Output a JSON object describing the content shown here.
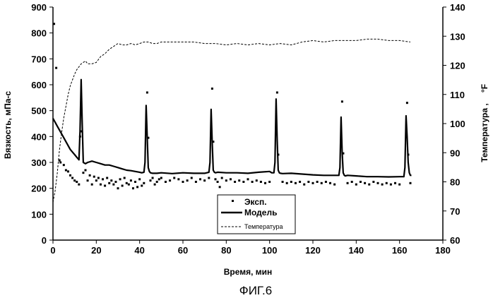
{
  "figure_caption": "ФИГ.6",
  "chart_data": {
    "type": "line",
    "xlabel": "Время, мин",
    "ylabel": "Вязкость, мПа-с",
    "y2label": "Температура ,",
    "y2unit": "°F",
    "xlim": [
      0,
      180
    ],
    "ylim": [
      0,
      900
    ],
    "y2lim": [
      60,
      140
    ],
    "xticks": [
      0,
      20,
      40,
      60,
      80,
      100,
      120,
      140,
      160,
      180
    ],
    "yticks": [
      0,
      100,
      200,
      300,
      400,
      500,
      600,
      700,
      800,
      900
    ],
    "y2ticks": [
      60,
      70,
      80,
      90,
      100,
      110,
      120,
      130,
      140
    ],
    "grid": false,
    "legend_position": "bottom-center",
    "legend": [
      "Эксп.",
      "Модель",
      "Температура"
    ],
    "series": [
      {
        "name": "Эксп.",
        "style": "points",
        "axis": "left",
        "x": [
          0.5,
          1.5,
          3,
          3.5,
          5,
          6,
          7,
          8,
          9,
          10,
          11,
          12,
          12.5,
          13.2,
          14,
          15,
          16,
          17,
          18,
          19,
          20,
          21,
          22,
          23,
          24,
          25,
          26,
          27,
          28,
          29,
          30,
          31,
          32,
          33,
          34,
          35,
          36,
          37,
          38,
          39,
          40,
          41,
          42,
          43.5,
          44,
          45,
          46,
          47,
          48,
          49,
          50,
          52,
          54,
          56,
          58,
          60,
          62,
          64,
          66,
          68,
          70,
          72,
          73.5,
          74,
          75,
          76,
          77,
          78,
          80,
          82,
          84,
          86,
          88,
          90,
          92,
          94,
          96,
          98,
          100,
          103.5,
          104,
          106,
          108,
          110,
          112,
          114,
          116,
          118,
          120,
          122,
          124,
          126,
          128,
          130,
          133.5,
          134,
          136,
          138,
          140,
          142,
          144,
          146,
          148,
          150,
          152,
          154,
          156,
          158,
          160,
          163.5,
          164,
          165
        ],
        "y": [
          835,
          665,
          308,
          300,
          290,
          270,
          265,
          250,
          240,
          230,
          225,
          215,
          400,
          420,
          260,
          270,
          230,
          250,
          215,
          245,
          230,
          240,
          215,
          235,
          210,
          240,
          220,
          230,
          215,
          225,
          200,
          235,
          210,
          240,
          220,
          215,
          230,
          200,
          225,
          205,
          235,
          210,
          220,
          570,
          395,
          230,
          240,
          215,
          225,
          235,
          240,
          225,
          230,
          240,
          235,
          225,
          230,
          240,
          225,
          235,
          230,
          240,
          585,
          380,
          235,
          225,
          205,
          240,
          230,
          235,
          225,
          230,
          225,
          235,
          225,
          230,
          225,
          220,
          225,
          570,
          330,
          225,
          220,
          225,
          220,
          225,
          215,
          225,
          220,
          225,
          220,
          225,
          220,
          215,
          535,
          335,
          220,
          225,
          215,
          225,
          220,
          215,
          225,
          220,
          215,
          220,
          215,
          220,
          215,
          530,
          330,
          220
        ]
      },
      {
        "name": "Модель",
        "style": "solid",
        "axis": "left",
        "x": [
          0,
          1,
          2,
          4,
          6,
          8,
          10,
          11,
          12,
          12.5,
          13,
          13.5,
          14,
          15,
          16,
          18,
          20,
          22,
          24,
          26,
          28,
          30,
          32,
          34,
          36,
          38,
          40,
          41,
          42,
          42.5,
          43,
          43.5,
          44,
          44.5,
          45,
          46,
          48,
          50,
          55,
          60,
          65,
          70,
          71,
          72,
          72.5,
          73,
          73.5,
          74,
          74.5,
          75,
          76,
          80,
          85,
          90,
          95,
          100,
          101,
          102,
          102.5,
          103,
          103.5,
          104,
          104.5,
          105,
          106,
          110,
          115,
          120,
          125,
          130,
          131,
          132,
          132.5,
          133,
          133.5,
          134,
          134.5,
          135,
          136,
          140,
          145,
          150,
          155,
          160,
          161,
          162,
          162.5,
          163,
          163.5,
          164,
          164.5,
          165,
          165.5
        ],
        "y": [
          470,
          455,
          440,
          410,
          380,
          350,
          330,
          320,
          310,
          420,
          620,
          450,
          300,
          295,
          300,
          305,
          300,
          295,
          290,
          290,
          285,
          280,
          275,
          270,
          268,
          265,
          262,
          260,
          262,
          300,
          520,
          400,
          280,
          265,
          260,
          258,
          258,
          260,
          257,
          260,
          258,
          258,
          260,
          262,
          300,
          505,
          380,
          270,
          262,
          260,
          262,
          260,
          260,
          258,
          262,
          265,
          260,
          260,
          300,
          545,
          390,
          270,
          260,
          258,
          257,
          258,
          255,
          252,
          250,
          250,
          250,
          250,
          280,
          475,
          340,
          260,
          250,
          248,
          250,
          248,
          245,
          245,
          244,
          245,
          245,
          245,
          280,
          480,
          400,
          300,
          260,
          250,
          250
        ]
      },
      {
        "name": "Температура",
        "style": "dashed",
        "axis": "right",
        "x": [
          0,
          1,
          2,
          3,
          4,
          5,
          6,
          7,
          8,
          9,
          10,
          11,
          12,
          13,
          14,
          15,
          16,
          18,
          20,
          22,
          24,
          26,
          28,
          30,
          32,
          34,
          36,
          38,
          40,
          42,
          44,
          46,
          48,
          50,
          55,
          60,
          65,
          70,
          75,
          80,
          85,
          90,
          95,
          100,
          105,
          110,
          115,
          120,
          125,
          130,
          135,
          140,
          145,
          150,
          155,
          160,
          165
        ],
        "y": [
          73,
          77,
          83,
          91,
          97,
          102,
          106,
          110,
          113,
          115,
          117,
          118.5,
          119.5,
          120.5,
          121,
          121.5,
          120.5,
          120.5,
          121,
          123,
          124,
          125.5,
          126.5,
          127.5,
          127,
          127,
          127.5,
          127,
          127.5,
          128,
          128,
          127.5,
          127.5,
          128,
          128,
          128,
          128,
          127.5,
          127.5,
          127,
          127.5,
          127,
          127.5,
          127,
          127.5,
          127,
          128,
          128.5,
          128,
          128.5,
          128.5,
          128.5,
          129,
          129,
          128.5,
          128.5,
          128
        ]
      }
    ]
  }
}
